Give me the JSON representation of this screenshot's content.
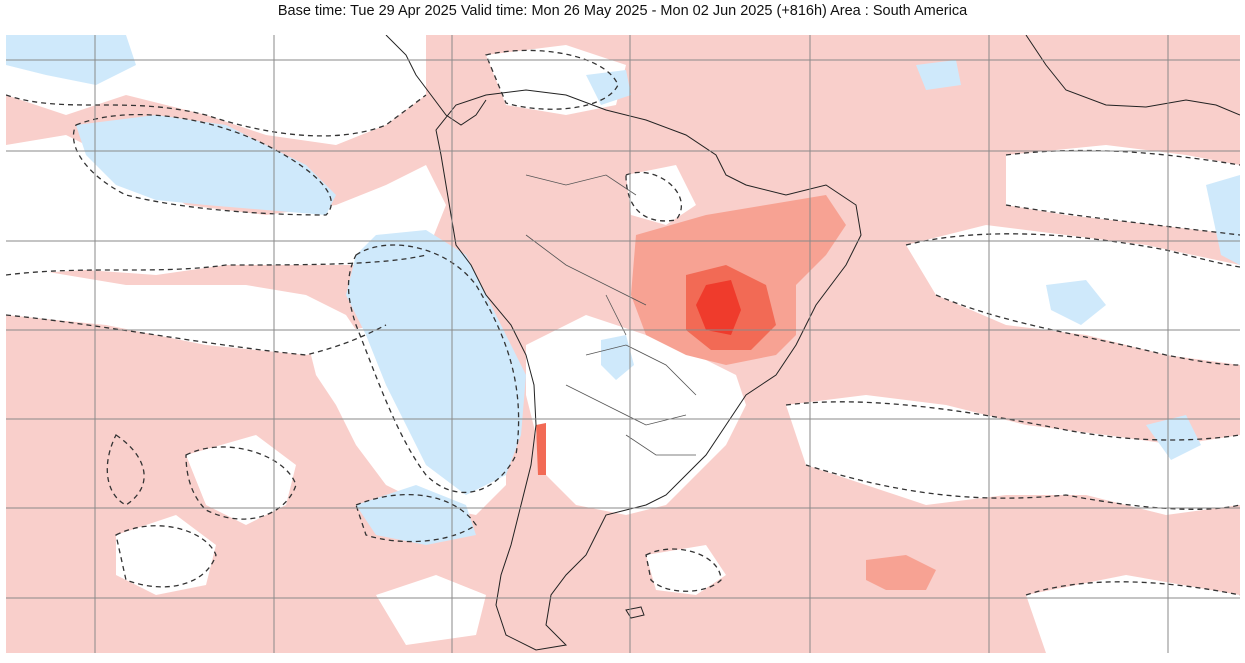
{
  "header": {
    "title": "Base time: Tue 29 Apr 2025 Valid time: Mon 26 May 2025 - Mon 02 Jun 2025 (+816h) Area : South America"
  },
  "colors": {
    "background_anomaly": "#ffffff",
    "light_positive": "#f9cfcb",
    "medium_positive": "#f7a293",
    "strong_positive": "#f26a55",
    "extreme_positive": "#ef3b2c",
    "light_negative": "#cfe9fb",
    "coastline": "#222222",
    "contour": "#333333",
    "grid": "#8a8a8a"
  }
}
